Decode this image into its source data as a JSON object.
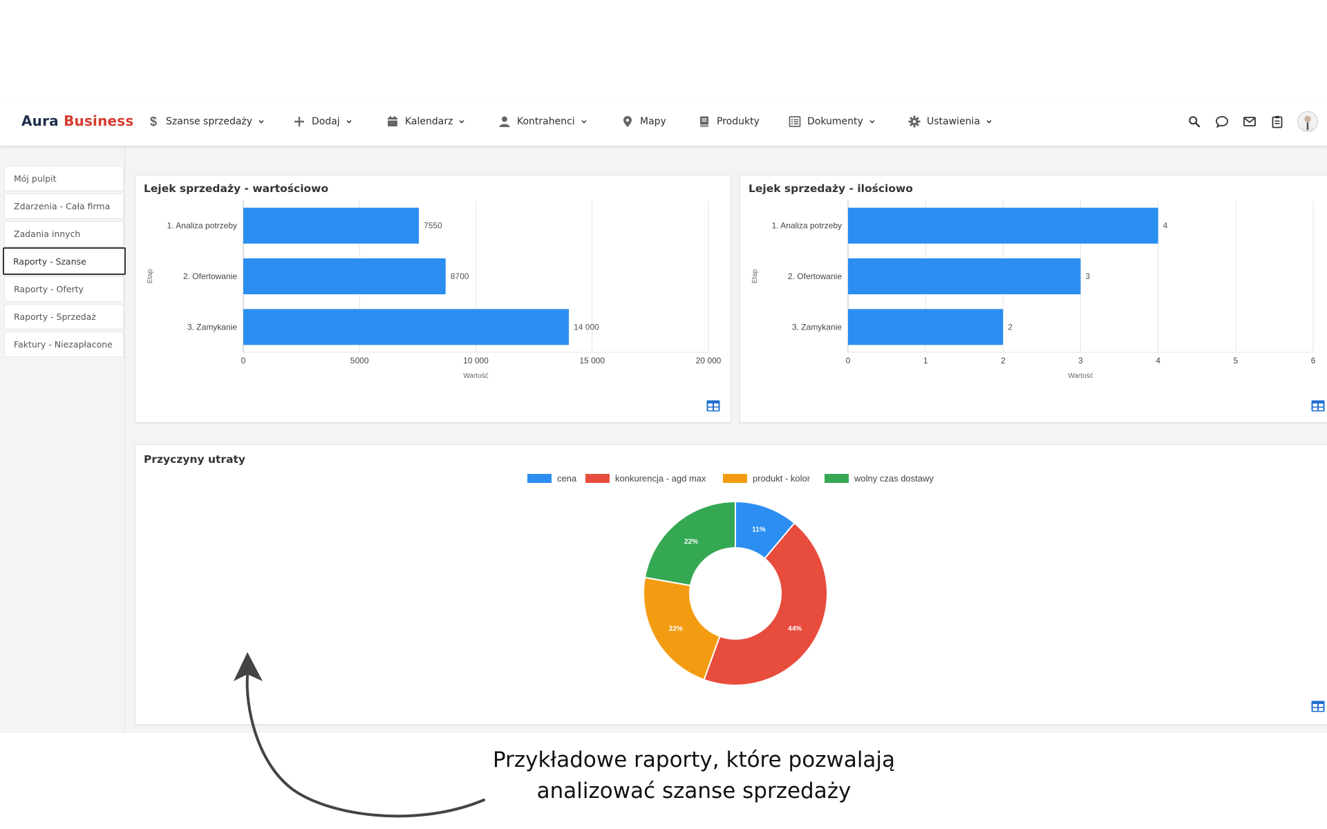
{
  "brand": {
    "part1": "Aura",
    "part2": "Business"
  },
  "nav": {
    "items": [
      {
        "label": "Szanse sprzedaży",
        "icon": "dollar-icon",
        "dropdown": true
      },
      {
        "label": "Dodaj",
        "icon": "plus-icon",
        "dropdown": true
      },
      {
        "label": "Kalendarz",
        "icon": "calendar-icon",
        "dropdown": true
      },
      {
        "label": "Kontrahenci",
        "icon": "person-icon",
        "dropdown": true
      },
      {
        "label": "Mapy",
        "icon": "map-pin-icon",
        "dropdown": false
      },
      {
        "label": "Produkty",
        "icon": "book-icon",
        "dropdown": false
      },
      {
        "label": "Dokumenty",
        "icon": "list-icon",
        "dropdown": true
      },
      {
        "label": "Ustawienia",
        "icon": "gear-icon",
        "dropdown": true
      }
    ],
    "right_icons": [
      "search-icon",
      "chat-icon",
      "mail-icon",
      "clipboard-icon",
      "avatar"
    ]
  },
  "sidebar": {
    "items": [
      {
        "label": "Mój pulpit",
        "active": false
      },
      {
        "label": "Zdarzenia - Cała firma",
        "active": false
      },
      {
        "label": "Zadania innych",
        "active": false
      },
      {
        "label": "Raporty - Szanse",
        "active": true
      },
      {
        "label": "Raporty - Oferty",
        "active": false
      },
      {
        "label": "Raporty - Sprzedaż",
        "active": false
      },
      {
        "label": "Faktury - Niezapłacone",
        "active": false
      }
    ]
  },
  "caption": {
    "line1": "Przykładowe raporty, które pozwalają",
    "line2": "analizować szanse sprzedaży"
  },
  "colors": {
    "bar": "#2b8ef0",
    "brand_dark": "#1f2d4d",
    "brand_red": "#d63b2f",
    "pie": [
      "#2b8ef0",
      "#e84c3d",
      "#f39c12",
      "#34a853"
    ]
  },
  "chart_data": [
    {
      "title": "Lejek sprzedaży - wartościowo",
      "type": "bar",
      "orientation": "horizontal",
      "categories": [
        "1. Analiza potrzeby",
        "2. Ofertowanie",
        "3. Zamykanie"
      ],
      "values": [
        7550,
        8700,
        14000
      ],
      "value_labels": [
        "7550",
        "8700",
        "14 000"
      ],
      "xlabel": "Wartość",
      "ylabel": "Etap",
      "xlim": [
        0,
        20000
      ],
      "ticks": [
        0,
        5000,
        10000,
        15000,
        20000
      ],
      "tick_labels": [
        "0",
        "5000",
        "10 000",
        "15 000",
        "20 000"
      ],
      "grid": true
    },
    {
      "title": "Lejek sprzedaży - ilościowo",
      "type": "bar",
      "orientation": "horizontal",
      "categories": [
        "1. Analiza potrzeby",
        "2. Ofertowanie",
        "3. Zamykanie"
      ],
      "values": [
        4,
        3,
        2
      ],
      "value_labels": [
        "4",
        "3",
        "2"
      ],
      "xlabel": "Wartość",
      "ylabel": "Etap",
      "xlim": [
        0,
        6
      ],
      "ticks": [
        0,
        1,
        2,
        3,
        4,
        5,
        6
      ],
      "tick_labels": [
        "0",
        "1",
        "2",
        "3",
        "4",
        "5",
        "6"
      ],
      "grid": true
    },
    {
      "title": "Przyczyny utraty",
      "type": "pie",
      "donut": true,
      "categories": [
        "cena",
        "konkurencja - agd max",
        "produkt - kolor",
        "wolny czas dostawy"
      ],
      "values": [
        11,
        44,
        22,
        22
      ],
      "value_labels": [
        "11%",
        "44%",
        "22%",
        "22%"
      ],
      "legend": "top"
    }
  ]
}
